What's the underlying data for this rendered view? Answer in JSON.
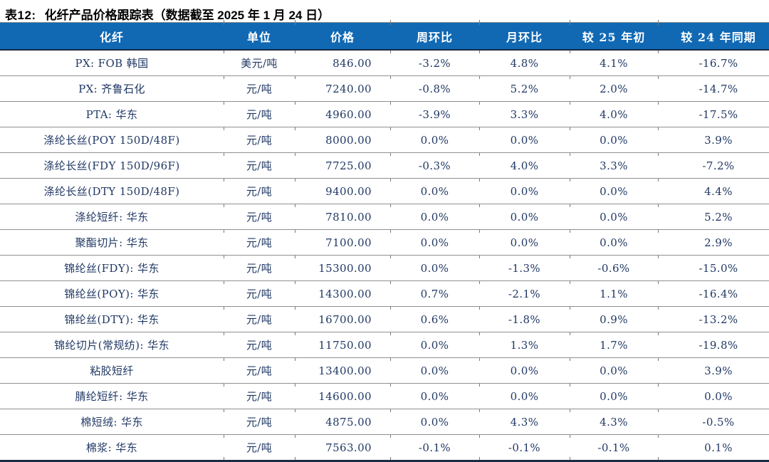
{
  "title": {
    "label": "表12:",
    "text": "化纤产品价格跟踪表（数据截至 2025 年 1 月 24 日）"
  },
  "table": {
    "columns": [
      "化纤",
      "单位",
      "价格",
      "周环比",
      "月环比",
      "较 25 年初",
      "较 24 年同期"
    ],
    "rows": [
      [
        "PX: FOB 韩国",
        "美元/吨",
        "846.00",
        "-3.2%",
        "4.8%",
        "4.1%",
        "-16.7%"
      ],
      [
        "PX: 齐鲁石化",
        "元/吨",
        "7240.00",
        "-0.8%",
        "5.2%",
        "2.0%",
        "-14.7%"
      ],
      [
        "PTA: 华东",
        "元/吨",
        "4960.00",
        "-3.9%",
        "3.3%",
        "4.0%",
        "-17.5%"
      ],
      [
        "涤纶长丝(POY 150D/48F)",
        "元/吨",
        "8000.00",
        "0.0%",
        "0.0%",
        "0.0%",
        "3.9%"
      ],
      [
        "涤纶长丝(FDY 150D/96F)",
        "元/吨",
        "7725.00",
        "-0.3%",
        "4.0%",
        "3.3%",
        "-7.2%"
      ],
      [
        "涤纶长丝(DTY 150D/48F)",
        "元/吨",
        "9400.00",
        "0.0%",
        "0.0%",
        "0.0%",
        "4.4%"
      ],
      [
        "涤纶短纤: 华东",
        "元/吨",
        "7810.00",
        "0.0%",
        "0.0%",
        "0.0%",
        "5.2%"
      ],
      [
        "聚酯切片: 华东",
        "元/吨",
        "7100.00",
        "0.0%",
        "0.0%",
        "0.0%",
        "2.9%"
      ],
      [
        "锦纶丝(FDY): 华东",
        "元/吨",
        "15300.00",
        "0.0%",
        "-1.3%",
        "-0.6%",
        "-15.0%"
      ],
      [
        "锦纶丝(POY): 华东",
        "元/吨",
        "14300.00",
        "0.7%",
        "-2.1%",
        "1.1%",
        "-16.4%"
      ],
      [
        "锦纶丝(DTY): 华东",
        "元/吨",
        "16700.00",
        "0.6%",
        "-1.8%",
        "0.9%",
        "-13.2%"
      ],
      [
        "锦纶切片(常规纺): 华东",
        "元/吨",
        "11750.00",
        "0.0%",
        "1.3%",
        "1.7%",
        "-19.8%"
      ],
      [
        "粘胶短纤",
        "元/吨",
        "13400.00",
        "0.0%",
        "0.0%",
        "0.0%",
        "3.9%"
      ],
      [
        "腈纶短纤: 华东",
        "元/吨",
        "14600.00",
        "0.0%",
        "0.0%",
        "0.0%",
        "0.0%"
      ],
      [
        "棉短绒: 华东",
        "元/吨",
        "4875.00",
        "0.0%",
        "4.3%",
        "4.3%",
        "-0.5%"
      ],
      [
        "棉浆: 华东",
        "元/吨",
        "7563.00",
        "-0.1%",
        "-0.1%",
        "-0.1%",
        "0.1%"
      ]
    ]
  },
  "colors": {
    "header_bg": "#1169B4",
    "header_text": "#FFFFFF",
    "data_text": "#203864",
    "rule_dark": "#1C2B45",
    "rule_light": "#8F8F8F"
  }
}
